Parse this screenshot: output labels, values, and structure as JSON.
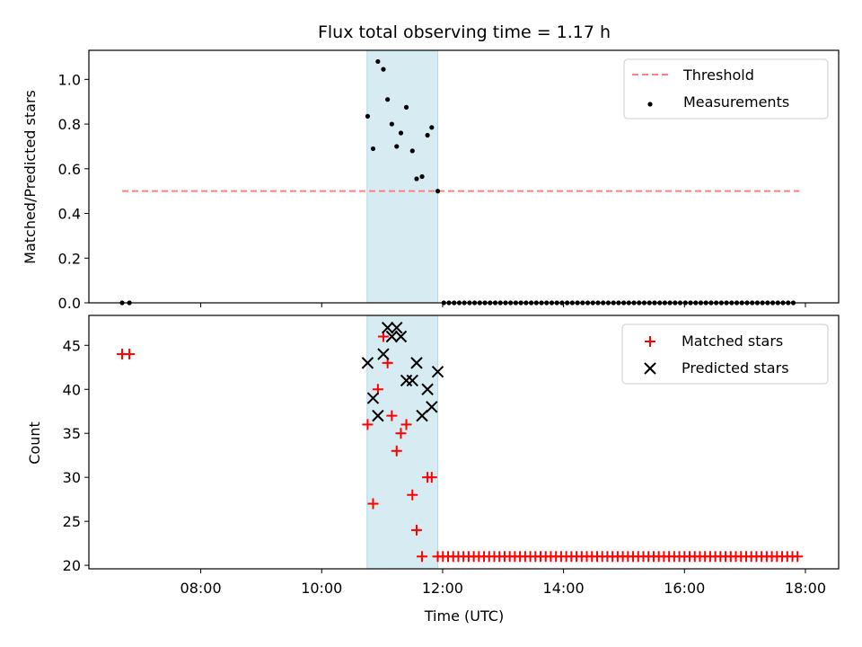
{
  "chart_data": [
    {
      "type": "scatter",
      "title": "Flux total observing time = 1.17 h",
      "xlabel": "",
      "ylabel": "Matched/Predicted stars",
      "xlim": [
        6.15,
        18.55
      ],
      "ylim": [
        0.0,
        1.13
      ],
      "yticks": [
        0.0,
        0.2,
        0.4,
        0.6,
        0.8,
        1.0
      ],
      "ytick_labels": [
        "0.0",
        "0.2",
        "0.4",
        "0.6",
        "0.8",
        "1.0"
      ],
      "legend_position": "top-right",
      "shaded_span": [
        10.75,
        11.92
      ],
      "threshold": {
        "name": "Threshold",
        "value": 0.5,
        "x": [
          6.7,
          17.9
        ],
        "color": "#ff7f7f"
      },
      "series": [
        {
          "name": "Measurements",
          "color": "#000000",
          "x": [
            6.7,
            6.82,
            10.76,
            10.85,
            10.93,
            11.02,
            11.09,
            11.16,
            11.24,
            11.31,
            11.4,
            11.5,
            11.57,
            11.66,
            11.75,
            11.82,
            11.92
          ],
          "y": [
            0.0,
            0.0,
            0.835,
            0.69,
            1.08,
            1.045,
            0.91,
            0.8,
            0.7,
            0.76,
            0.875,
            0.68,
            0.555,
            0.565,
            0.75,
            0.785,
            0.5
          ]
        },
        {
          "name": "Measurements-zero",
          "color": "#000000",
          "x_from": 12.02,
          "x_to": 17.88,
          "x_step": 0.085,
          "y_const": 0.0
        }
      ]
    },
    {
      "type": "scatter",
      "title": "",
      "xlabel": "Time (UTC)",
      "ylabel": "Count",
      "xlim": [
        6.15,
        18.55
      ],
      "ylim": [
        19.6,
        48.4
      ],
      "yticks": [
        20,
        25,
        30,
        35,
        40,
        45
      ],
      "ytick_labels": [
        "20",
        "25",
        "30",
        "35",
        "40",
        "45"
      ],
      "xticks": [
        8,
        10,
        12,
        14,
        16,
        18
      ],
      "xtick_labels": [
        "08:00",
        "10:00",
        "12:00",
        "14:00",
        "16:00",
        "18:00"
      ],
      "legend_position": "top-right",
      "shaded_span": [
        10.75,
        11.92
      ],
      "series": [
        {
          "name": "Matched stars",
          "color": "#ff0000",
          "marker": "plus",
          "x": [
            6.7,
            6.82,
            10.76,
            10.85,
            10.93,
            11.02,
            11.09,
            11.16,
            11.24,
            11.31,
            11.4,
            11.5,
            11.57,
            11.66,
            11.75,
            11.82
          ],
          "y": [
            44,
            44,
            36,
            27,
            40,
            46,
            43,
            37,
            33,
            35,
            36,
            28,
            24,
            21,
            30,
            30
          ],
          "tail": {
            "x_from": 11.92,
            "x_to": 17.88,
            "x_step": 0.085,
            "y_const": 21
          }
        },
        {
          "name": "Predicted stars",
          "color": "#000000",
          "marker": "x",
          "x": [
            10.76,
            10.85,
            10.93,
            11.02,
            11.09,
            11.16,
            11.24,
            11.31,
            11.4,
            11.5,
            11.57,
            11.66,
            11.75,
            11.82,
            11.92
          ],
          "y": [
            43,
            39,
            37,
            44,
            47,
            46,
            47,
            46,
            41,
            41,
            43,
            37,
            40,
            38,
            42
          ]
        }
      ]
    }
  ]
}
